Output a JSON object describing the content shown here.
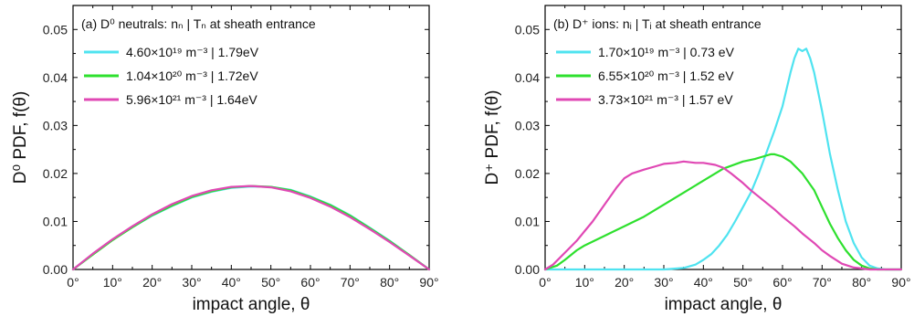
{
  "chart_data": [
    {
      "type": "line",
      "title": "(a) D⁰ neutrals: nₙ | Tₙ at sheath entrance",
      "xlabel": "impact angle, θ",
      "ylabel": "D⁰ PDF, f(θ)",
      "xlim": [
        0,
        90
      ],
      "ylim": [
        0,
        0.055
      ],
      "xticks": [
        "0°",
        "10°",
        "20°",
        "30°",
        "40°",
        "50°",
        "60°",
        "70°",
        "80°",
        "90°"
      ],
      "yticks": [
        "0.00",
        "0.01",
        "0.02",
        "0.03",
        "0.04",
        "0.05"
      ],
      "legend_position": "top-left",
      "series": [
        {
          "name": "4.60×10¹⁹ m⁻³ | 1.79eV",
          "color": "#4fe3f0",
          "x": [
            0,
            5,
            10,
            15,
            20,
            25,
            30,
            35,
            40,
            45,
            50,
            55,
            60,
            65,
            70,
            75,
            80,
            85,
            90
          ],
          "y": [
            0,
            0.0032,
            0.0062,
            0.0088,
            0.0112,
            0.0132,
            0.015,
            0.0162,
            0.017,
            0.0173,
            0.0172,
            0.0166,
            0.0152,
            0.0135,
            0.0113,
            0.0087,
            0.006,
            0.003,
            0
          ]
        },
        {
          "name": "1.04×10²⁰ m⁻³ | 1.72eV",
          "color": "#2ee02e",
          "x": [
            0,
            5,
            10,
            15,
            20,
            25,
            30,
            35,
            40,
            45,
            50,
            55,
            60,
            65,
            70,
            75,
            80,
            85,
            90
          ],
          "y": [
            0,
            0.0031,
            0.0061,
            0.0088,
            0.0113,
            0.0133,
            0.0151,
            0.0163,
            0.0171,
            0.0174,
            0.0172,
            0.0165,
            0.0151,
            0.0134,
            0.0112,
            0.0086,
            0.0059,
            0.003,
            0
          ]
        },
        {
          "name": "5.96×10²¹ m⁻³ | 1.64eV",
          "color": "#e048b4",
          "x": [
            0,
            5,
            10,
            15,
            20,
            25,
            30,
            35,
            40,
            45,
            50,
            55,
            60,
            65,
            70,
            75,
            80,
            85,
            90
          ],
          "y": [
            0,
            0.0033,
            0.0063,
            0.009,
            0.0115,
            0.0136,
            0.0153,
            0.0165,
            0.0172,
            0.0174,
            0.0171,
            0.0163,
            0.0149,
            0.0131,
            0.0109,
            0.0084,
            0.0057,
            0.0029,
            0
          ]
        }
      ]
    },
    {
      "type": "line",
      "title": "(b) D⁺ ions: nᵢ | Tᵢ at sheath entrance",
      "xlabel": "impact angle, θ",
      "ylabel": "D⁺ PDF, f(θ)",
      "xlim": [
        0,
        90
      ],
      "ylim": [
        0,
        0.055
      ],
      "xticks": [
        "0°",
        "10°",
        "20°",
        "30°",
        "40°",
        "50°",
        "60°",
        "70°",
        "80°",
        "90°"
      ],
      "yticks": [
        "0.00",
        "0.01",
        "0.02",
        "0.03",
        "0.04",
        "0.05"
      ],
      "legend_position": "top-left",
      "series": [
        {
          "name": "1.70×10¹⁹ m⁻³ | 0.73 eV",
          "color": "#4fe3f0",
          "x": [
            0,
            30,
            35,
            38,
            40,
            42,
            44,
            46,
            48,
            50,
            52,
            54,
            56,
            58,
            60,
            62,
            63,
            64,
            65,
            66,
            67,
            68,
            70,
            72,
            74,
            76,
            78,
            80,
            82,
            84,
            86,
            90
          ],
          "y": [
            0,
            0,
            0.0003,
            0.001,
            0.002,
            0.0032,
            0.005,
            0.0072,
            0.01,
            0.013,
            0.016,
            0.02,
            0.0245,
            0.029,
            0.034,
            0.041,
            0.044,
            0.046,
            0.0455,
            0.046,
            0.044,
            0.041,
            0.033,
            0.024,
            0.0165,
            0.01,
            0.0055,
            0.0025,
            0.0008,
            0.0002,
            0,
            0
          ]
        },
        {
          "name": "6.55×10²⁰ m⁻³ | 1.52 eV",
          "color": "#2ee02e",
          "x": [
            0,
            3,
            5,
            8,
            10,
            15,
            20,
            25,
            30,
            35,
            40,
            45,
            50,
            53,
            55,
            57,
            58,
            60,
            62,
            65,
            68,
            70,
            72,
            74,
            76,
            78,
            80,
            82,
            84,
            86,
            90
          ],
          "y": [
            0,
            0.0008,
            0.002,
            0.004,
            0.005,
            0.007,
            0.009,
            0.011,
            0.0135,
            0.016,
            0.0185,
            0.021,
            0.0225,
            0.023,
            0.0235,
            0.024,
            0.024,
            0.0235,
            0.0225,
            0.02,
            0.0165,
            0.013,
            0.0095,
            0.0065,
            0.004,
            0.002,
            0.0008,
            0.0002,
            0,
            0,
            0
          ]
        },
        {
          "name": "3.73×10²¹ m⁻³ | 1.57 eV",
          "color": "#e048b4",
          "x": [
            0,
            2,
            5,
            8,
            10,
            12,
            15,
            18,
            20,
            22,
            25,
            28,
            30,
            33,
            35,
            38,
            40,
            43,
            45,
            47,
            50,
            52,
            55,
            58,
            60,
            63,
            65,
            68,
            70,
            72,
            75,
            78,
            80,
            82,
            85,
            90
          ],
          "y": [
            0,
            0.001,
            0.0035,
            0.006,
            0.008,
            0.01,
            0.0135,
            0.017,
            0.019,
            0.02,
            0.0208,
            0.0215,
            0.022,
            0.0222,
            0.0225,
            0.0222,
            0.0222,
            0.0218,
            0.0212,
            0.02,
            0.018,
            0.0165,
            0.0145,
            0.0125,
            0.011,
            0.009,
            0.0075,
            0.0055,
            0.004,
            0.0028,
            0.0012,
            0.0004,
            0.0002,
            0,
            0,
            0
          ]
        }
      ]
    }
  ]
}
